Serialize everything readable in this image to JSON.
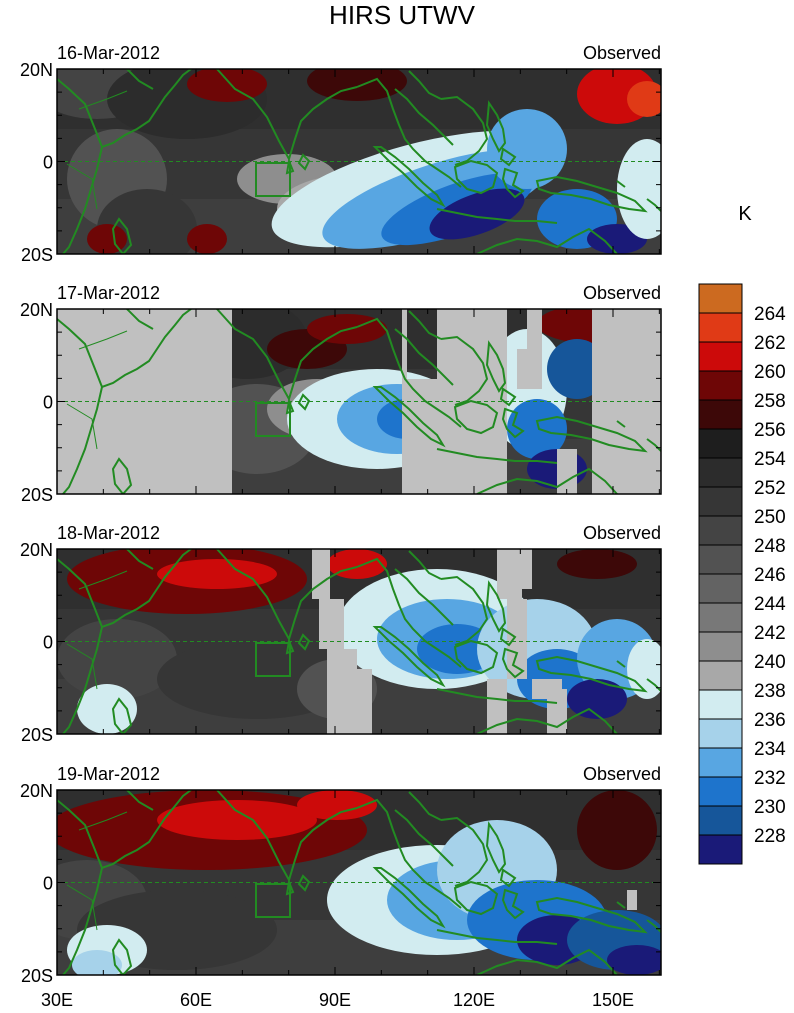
{
  "title": "HIRS UTWV",
  "panels": [
    {
      "date": "16-Mar-2012",
      "label": "Observed"
    },
    {
      "date": "17-Mar-2012",
      "label": "Observed"
    },
    {
      "date": "18-Mar-2012",
      "label": "Observed"
    },
    {
      "date": "19-Mar-2012",
      "label": "Observed"
    }
  ],
  "lat_ticks": [
    "20N",
    "0",
    "20S"
  ],
  "lon_ticks": [
    "30E",
    "60E",
    "90E",
    "120E",
    "150E"
  ],
  "colorbar": {
    "unit": "K",
    "labels": [
      "264",
      "262",
      "260",
      "258",
      "256",
      "254",
      "252",
      "250",
      "248",
      "246",
      "244",
      "242",
      "240",
      "238",
      "236",
      "234",
      "232",
      "230",
      "228"
    ],
    "colors": [
      "#cc6a20",
      "#e03a16",
      "#cc0a0a",
      "#6e0606",
      "#3d0808",
      "#1e1e1e",
      "#2c2c2c",
      "#363636",
      "#444444",
      "#525252",
      "#636363",
      "#787878",
      "#8e8e8e",
      "#a8a8a8",
      "#d2ecf0",
      "#a6d2ea",
      "#58a6e2",
      "#1e74cc",
      "#16569a",
      "#1a1a78"
    ]
  },
  "missing_color": "#c0c0c0",
  "coast_color": "#228b22"
}
